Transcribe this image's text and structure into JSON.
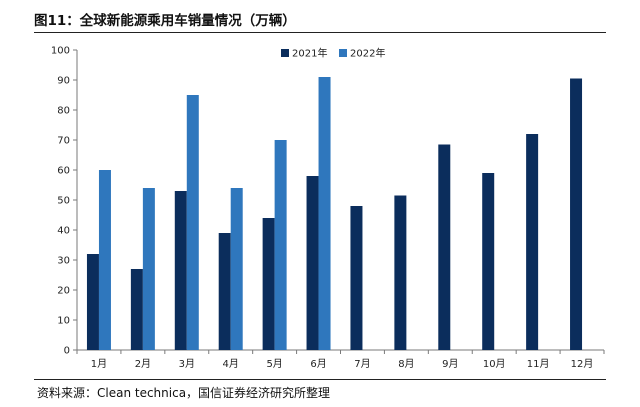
{
  "title": "图11：全球新能源乘用车销量情况（万辆）",
  "source": "资料来源：Clean technica，国信证券经济研究所整理",
  "colors": {
    "series_2021": "#0b2d5c",
    "series_2022": "#2f77bd",
    "axis": "#7a7a7a",
    "text": "#222222"
  },
  "chart_data": {
    "type": "bar",
    "categories": [
      "1月",
      "2月",
      "3月",
      "4月",
      "5月",
      "6月",
      "7月",
      "8月",
      "9月",
      "10月",
      "11月",
      "12月"
    ],
    "series": [
      {
        "name": "2021年",
        "values": [
          32,
          27,
          53,
          39,
          44,
          58,
          48,
          51.5,
          68.5,
          59,
          72,
          90.5
        ]
      },
      {
        "name": "2022年",
        "values": [
          60,
          54,
          85,
          54,
          70,
          91,
          null,
          null,
          null,
          null,
          null,
          null
        ]
      }
    ],
    "ylim": [
      0,
      100
    ],
    "yticks": [
      0,
      10,
      20,
      30,
      40,
      50,
      60,
      70,
      80,
      90,
      100
    ],
    "grid": false,
    "legend_position": "top",
    "xlabel": "",
    "ylabel": ""
  }
}
